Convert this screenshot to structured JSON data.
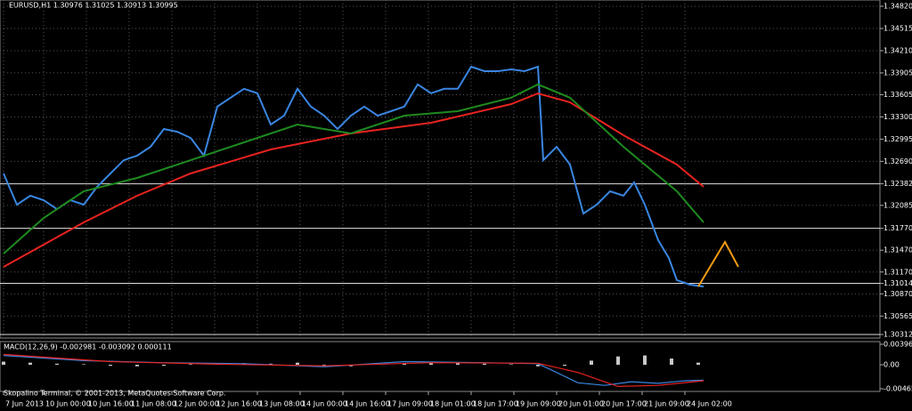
{
  "chart_data": [
    {
      "type": "line",
      "title": "EURUSD,H1  1.30976 1.31025 1.30913 1.30995",
      "note": "Skopalino Terminal, © 2001-2013, MetaQuotes Software Corp.",
      "xlim": [
        -1.33,
        328
      ],
      "ylim": [
        1.30263,
        1.34906
      ],
      "grid": true,
      "xticks": [
        {
          "value": 0,
          "label": "7 Jun 2013"
        },
        {
          "value": 15,
          "label": "10 Jun 00:00"
        },
        {
          "value": 31,
          "label": "10 Jun 16:00"
        },
        {
          "value": 47,
          "label": "11 Jun 08:00"
        },
        {
          "value": 63,
          "label": "12 Jun 00:00"
        },
        {
          "value": 79,
          "label": "12 Jun 16:00"
        },
        {
          "value": 95,
          "label": "13 Jun 08:00"
        },
        {
          "value": 111,
          "label": "14 Jun 00:00"
        },
        {
          "value": 127,
          "label": "14 Jun 16:00"
        },
        {
          "value": 143,
          "label": "17 Jun 09:00"
        },
        {
          "value": 159,
          "label": "18 Jun 01:00"
        },
        {
          "value": 175,
          "label": "18 Jun 17:00"
        },
        {
          "value": 191,
          "label": "19 Jun 09:00"
        },
        {
          "value": 207,
          "label": "20 Jun 01:00"
        },
        {
          "value": 223,
          "label": "20 Jun 17:00"
        },
        {
          "value": 239,
          "label": "21 Jun 09:00"
        },
        {
          "value": 255,
          "label": "24 Jun 02:00"
        }
      ],
      "yticks": [
        {
          "value": 1.3482,
          "label": "1.34820"
        },
        1.34515,
        {
          "value": 1.3421,
          "label": "1.34210"
        },
        {
          "value": 1.33905,
          "label": "1.33905"
        },
        {
          "value": 1.33605,
          "label": "1.33605"
        },
        {
          "value": 1.333,
          "label": "1.33300"
        },
        1.32995,
        {
          "value": 1.3269,
          "label": "1.32690"
        },
        1.32382,
        1.32085,
        {
          "value": 1.3177,
          "label": "1.31770"
        },
        {
          "value": 1.3147,
          "label": "1.31470"
        },
        {
          "value": 1.3117,
          "label": "1.31170"
        },
        1.31014,
        {
          "value": 1.3087,
          "label": "1.30870"
        },
        1.30565,
        1.30312
      ],
      "hlines": [
        1.32382,
        1.3177,
        1.31014,
        1.30312
      ],
      "series": [
        {
          "color": "#3a86e0",
          "x": [
            0,
            5,
            10,
            15,
            20,
            25,
            30,
            35,
            40,
            45,
            50,
            55,
            60,
            65,
            70,
            75,
            80,
            85,
            90,
            95,
            100,
            105,
            110,
            115,
            120,
            125,
            130,
            135,
            140,
            145,
            150,
            155,
            160,
            165,
            170,
            175,
            180,
            185,
            190,
            195,
            200,
            202,
            207,
            212,
            217,
            222,
            227,
            232,
            236,
            240,
            245,
            249,
            252,
            257,
            262
          ],
          "values": [
            1.32523,
            1.32095,
            1.32218,
            1.32157,
            1.32034,
            1.32157,
            1.32095,
            1.3234,
            1.32523,
            1.32706,
            1.32768,
            1.3289,
            1.33134,
            1.33097,
            1.33012,
            1.32768,
            1.33442,
            1.33564,
            1.33686,
            1.33625,
            1.33195,
            1.33317,
            1.33686,
            1.33442,
            1.33317,
            1.33134,
            1.33317,
            1.33442,
            1.33317,
            1.33379,
            1.33442,
            1.33747,
            1.33625,
            1.33686,
            1.33686,
            1.3399,
            1.33929,
            1.33929,
            1.33953,
            1.33929,
            1.3399,
            1.32706,
            1.3289,
            1.32645,
            1.31973,
            1.32095,
            1.32279,
            1.32218,
            1.32401,
            1.32095,
            1.31607,
            1.31362,
            1.31057,
            1.30996,
            1.30971
          ]
        },
        {
          "color": "#e8231f",
          "x": [
            0,
            15,
            30,
            50,
            70,
            100,
            130,
            160,
            190,
            200,
            212,
            232,
            252,
            262
          ],
          "values": [
            1.3124,
            1.31546,
            1.31851,
            1.32218,
            1.32523,
            1.32853,
            1.33073,
            1.3322,
            1.33476,
            1.33623,
            1.33501,
            1.33049,
            1.32645,
            1.3234
          ]
        },
        {
          "color": "#1f8a1f",
          "x": [
            0,
            15,
            30,
            50,
            70,
            90,
            110,
            130,
            150,
            170,
            190,
            200,
            212,
            232,
            252,
            262
          ],
          "values": [
            1.31423,
            1.31912,
            1.32279,
            1.32462,
            1.32706,
            1.32951,
            1.33195,
            1.33073,
            1.33317,
            1.33379,
            1.33564,
            1.33747,
            1.33564,
            1.3289,
            1.32279,
            1.31851
          ]
        },
        {
          "color": "#f39c12",
          "x": [
            260,
            270,
            275
          ],
          "values": [
            1.30971,
            1.31582,
            1.3124
          ]
        }
      ]
    },
    {
      "type": "macd",
      "title": "MACD(12,26,9) -0.002981 -0.003092 0.000111",
      "xlim": [
        -1.33,
        328
      ],
      "ylim": [
        -0.00517,
        0.00448
      ],
      "yticks": [
        {
          "value": 0.00396,
          "label": "0.003960"
        },
        {
          "value": 0,
          "label": "0.00"
        },
        {
          "value": -0.004652,
          "label": "-0.004652"
        }
      ],
      "histogram": {
        "color": "#c8c8c8",
        "x": [
          0,
          10,
          20,
          30,
          40,
          50,
          60,
          70,
          80,
          90,
          100,
          110,
          120,
          130,
          140,
          150,
          160,
          170,
          180,
          190,
          200,
          210,
          220,
          230,
          240,
          250,
          260
        ],
        "values": [
          0.0006,
          0.0004,
          0.0002,
          0.0001,
          -0.0002,
          -0.0003,
          -0.0002,
          0.0001,
          0.0002,
          0.0003,
          0.0002,
          0.0004,
          -0.0002,
          -0.0003,
          0.0001,
          0.0002,
          0.0003,
          0.0003,
          0.0002,
          0.0001,
          -0.0003,
          -0.0002,
          0.0008,
          0.0016,
          0.0018,
          0.0012,
          0.0004
        ]
      },
      "series": [
        {
          "color": "#3a86e0",
          "x": [
            0,
            30,
            60,
            90,
            120,
            150,
            180,
            200,
            205,
            215,
            225,
            235,
            245,
            255,
            262
          ],
          "values": [
            0.0018,
            0.0008,
            0.0004,
            0.0002,
            -0.0004,
            0.0006,
            0.0004,
            0.0002,
            -0.001,
            -0.0035,
            -0.004,
            -0.0033,
            -0.0036,
            -0.0031,
            -0.003
          ]
        },
        {
          "color": "#e8231f",
          "x": [
            0,
            40,
            80,
            120,
            160,
            200,
            215,
            230,
            245,
            262
          ],
          "values": [
            0.002,
            0.0006,
            0.0001,
            -0.0002,
            0.0004,
            0.0003,
            -0.0015,
            -0.0042,
            -0.004,
            -0.0031
          ]
        }
      ]
    }
  ]
}
